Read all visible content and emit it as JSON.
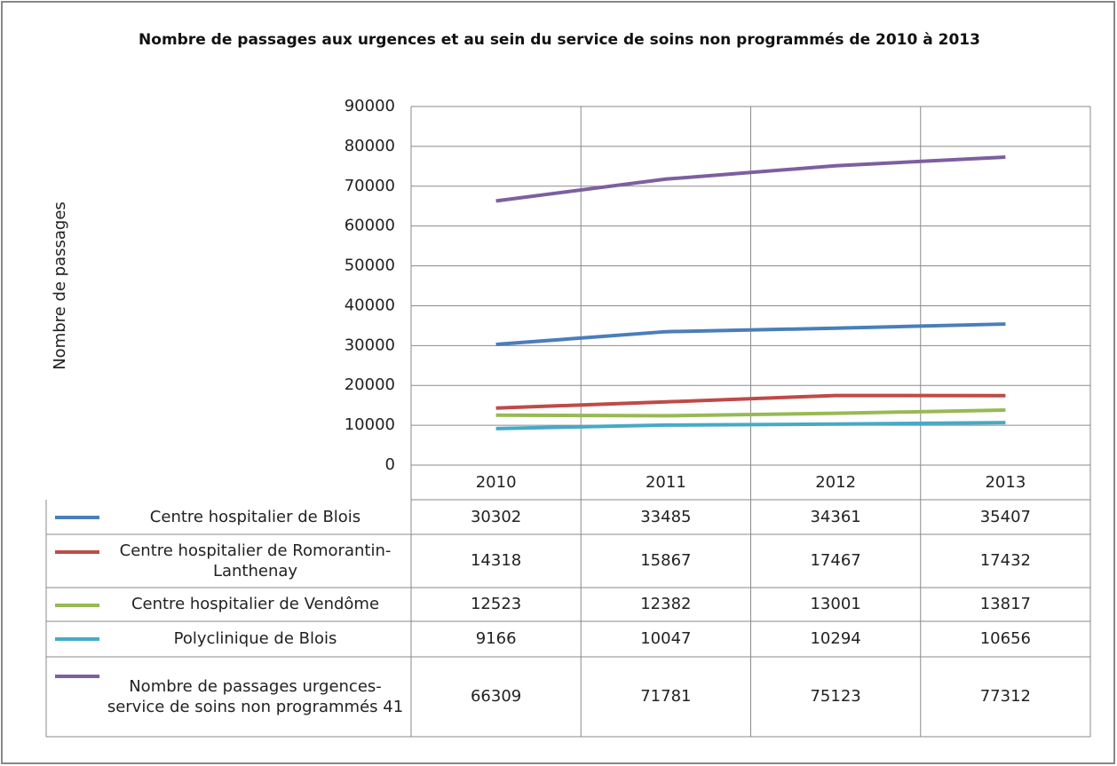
{
  "chart_data": {
    "type": "line",
    "title": "Nombre de passages aux urgences et au sein du service de soins non programmés de 2010 à 2013",
    "y_label": "Nombre de passages",
    "categories": [
      "2010",
      "2011",
      "2012",
      "2013"
    ],
    "series": [
      {
        "name": "Centre hospitalier de Blois",
        "color": "#4a7ebb",
        "values": [
          30302,
          33485,
          34361,
          35407
        ]
      },
      {
        "name": "Centre hospitalier de Romorantin-Lanthenay",
        "color": "#be4b48",
        "values": [
          14318,
          15867,
          17467,
          17432
        ]
      },
      {
        "name": "Centre hospitalier de Vendôme",
        "color": "#98b954",
        "values": [
          12523,
          12382,
          13001,
          13817
        ]
      },
      {
        "name": "Polyclinique de Blois",
        "color": "#46aac5",
        "values": [
          9166,
          10047,
          10294,
          10656
        ]
      },
      {
        "name": "Nombre de passages urgences-service de soins non programmés 41",
        "color": "#7d5fa0",
        "values": [
          66309,
          71781,
          75123,
          77312
        ]
      }
    ],
    "ylim": [
      0,
      90000
    ],
    "yticks": [
      0,
      10000,
      20000,
      30000,
      40000,
      50000,
      60000,
      70000,
      80000,
      90000
    ],
    "grid": true,
    "legend": "data-table"
  }
}
